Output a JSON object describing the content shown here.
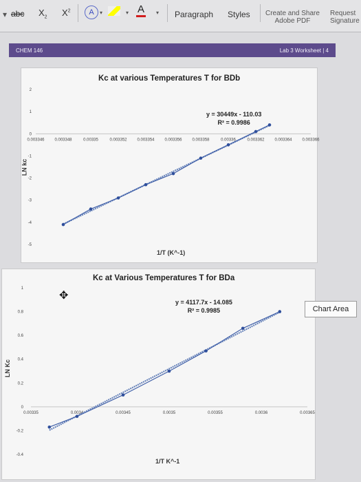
{
  "ribbon": {
    "strikethrough": "abc",
    "subscript": "X",
    "subscript_mark": "2",
    "superscript": "X",
    "superscript_mark": "2",
    "font_color_glyph": "A",
    "paragraph": "Paragraph",
    "styles": "Styles",
    "create_share": "Create and Share\nAdobe PDF",
    "request": "Request\nSignature"
  },
  "doc_header": {
    "left": "CHEM 146",
    "right": "Lab 3 Worksheet | 4"
  },
  "tooltip": "Chart Area",
  "chart_data": [
    {
      "type": "scatter",
      "title": "Kc at various Temperatures T for BDb",
      "xlabel": "1/T (K^-1)",
      "ylabel": "LN kc",
      "xlim": [
        0.003346,
        0.003366
      ],
      "ylim": [
        -5,
        2
      ],
      "x_ticks": [
        "0.003346",
        "0.003348",
        "0.00335",
        "0.003352",
        "0.003354",
        "0.003356",
        "0.003358",
        "0.00336",
        "0.003362",
        "0.003364",
        "0.003366"
      ],
      "y_ticks": [
        "2",
        "1",
        "0",
        "-1",
        "-2",
        "-3",
        "-4",
        "-5"
      ],
      "equation": "y = 30449x - 110.03",
      "r_squared": "R² = 0.9986",
      "points": [
        {
          "x": 0.003348,
          "y": -4.1
        },
        {
          "x": 0.00335,
          "y": -3.4
        },
        {
          "x": 0.003352,
          "y": -2.9
        },
        {
          "x": 0.003354,
          "y": -2.3
        },
        {
          "x": 0.003356,
          "y": -1.8
        },
        {
          "x": 0.003358,
          "y": -1.1
        },
        {
          "x": 0.00336,
          "y": -0.5
        },
        {
          "x": 0.003362,
          "y": 0.1
        },
        {
          "x": 0.003363,
          "y": 0.4
        }
      ]
    },
    {
      "type": "scatter",
      "title": "Kc at Various Temperatures T for BDa",
      "xlabel": "1/T K^-1",
      "ylabel": "LN Kc",
      "xlim": [
        0.003335,
        0.003365
      ],
      "ylim": [
        -0.4,
        1
      ],
      "x_ticks": [
        "0.00335",
        "0.0034",
        "0.00345",
        "0.0035",
        "0.00355",
        "0.0036",
        "0.00365"
      ],
      "x_first_tick": "0.00335",
      "y_ticks": [
        "1",
        "0.8",
        "0.6",
        "0.4",
        "0.2",
        "0",
        "-0.2",
        "-0.4"
      ],
      "equation": "y = 4117.7x - 14.085",
      "r_squared": "R² = 0.9985",
      "points": [
        {
          "x": 0.003337,
          "y": -0.17
        },
        {
          "x": 0.00334,
          "y": -0.08
        },
        {
          "x": 0.003345,
          "y": 0.1
        },
        {
          "x": 0.00335,
          "y": 0.3
        },
        {
          "x": 0.003354,
          "y": 0.47
        },
        {
          "x": 0.003358,
          "y": 0.66
        },
        {
          "x": 0.003362,
          "y": 0.8
        }
      ]
    }
  ]
}
